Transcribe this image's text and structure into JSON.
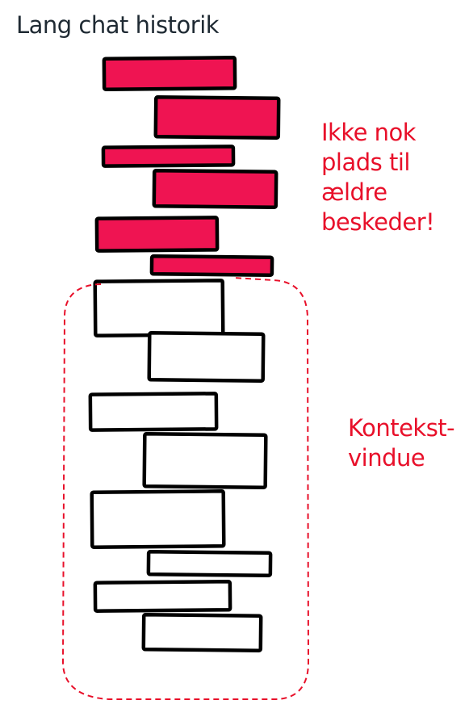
{
  "title": "Lang chat historik",
  "annotations": {
    "overflow_lines": [
      "Ikke nok",
      "plads til",
      "ældre",
      "beskeder!"
    ],
    "context_lines": [
      "Kontekst-",
      "vindue"
    ]
  },
  "colors": {
    "overflow_fill": "#ef1452",
    "outline": "#000000",
    "context_border": "#e8102a",
    "annotation_text": "#e8102a",
    "title_text": "#1f2a33"
  },
  "messages": {
    "outside_window_count": 6,
    "inside_window_count": 8
  }
}
